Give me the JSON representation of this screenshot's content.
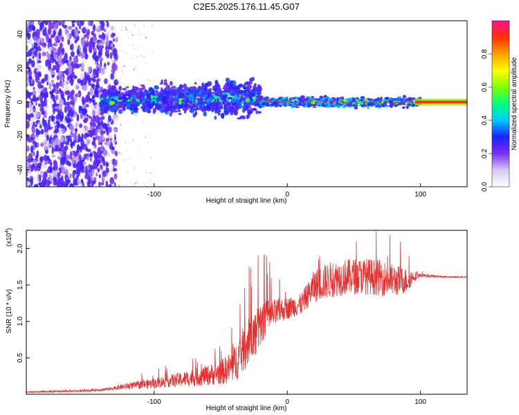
{
  "title": "C2E5.2025.176.11.45.G07",
  "colors": {
    "snr_line": "#e83030",
    "axis": "#000000"
  },
  "chart_data": [
    {
      "type": "heatmap",
      "xlabel": "Height of straight line (km)",
      "ylabel": "Frequency (Hz)",
      "xlim": [
        -196,
        135
      ],
      "ylim": [
        -50,
        48
      ],
      "x_ticks": [
        -100,
        0,
        100
      ],
      "y_ticks": [
        -40,
        -20,
        0,
        20,
        40
      ],
      "colorbar": {
        "label": "Normalized spectral amplitude",
        "ticks": [
          0.0,
          0.2,
          0.4,
          0.6,
          0.8
        ],
        "range": [
          0,
          1
        ],
        "colormap": [
          "#ffffff",
          "#d8c8f0",
          "#7b2ff0",
          "#2020ff",
          "#00c8ff",
          "#00ff80",
          "#80ff00",
          "#ffff00",
          "#ffa000",
          "#ff3000",
          "#ff1090"
        ]
      },
      "features": [
        {
          "region_km": [
            -196,
            -130
          ],
          "frequency_hz": [
            -50,
            48
          ],
          "amplitude": [
            0.05,
            0.25
          ],
          "description_id": "broadband"
        },
        {
          "region_km": [
            -130,
            -20
          ],
          "frequency_hz": [
            -8,
            10
          ],
          "amplitude": [
            0.2,
            0.55
          ],
          "description_id": "band"
        },
        {
          "region_km": [
            -20,
            100
          ],
          "frequency_hz": [
            -2,
            2
          ],
          "amplitude": [
            0.3,
            0.9
          ],
          "description_id": "narrow"
        },
        {
          "region_km": [
            100,
            135
          ],
          "frequency_hz": [
            -1,
            1
          ],
          "amplitude": [
            0.8,
            0.95
          ],
          "description_id": "carrier"
        }
      ]
    },
    {
      "type": "line",
      "xlabel": "Height of straight line (km)",
      "ylabel": "SNR (10 * v/v)",
      "y_multiplier": "(x10",
      "y_multiplier_exp": "4",
      "y_multiplier_close": ")",
      "xlim": [
        -196,
        135
      ],
      "ylim": [
        0,
        22500
      ],
      "x_ticks": [
        -100,
        0,
        100
      ],
      "y_ticks": [
        5000,
        10000,
        15000,
        20000
      ],
      "y_tick_labels": [
        "0.5",
        "1.0",
        "1.5",
        "2.0"
      ],
      "series": [
        {
          "x": [
            -196,
            -170,
            -150,
            -135,
            -125,
            -110,
            -100,
            -90,
            -80,
            -70,
            -60,
            -50,
            -45,
            -40,
            -35,
            -30,
            -25,
            -20,
            -15,
            -10,
            -5,
            0,
            10,
            15,
            20,
            30,
            40,
            50,
            60,
            70,
            80,
            90,
            95,
            100,
            110,
            120,
            135
          ],
          "y": [
            300,
            400,
            500,
            700,
            1000,
            1300,
            1500,
            1800,
            2000,
            2300,
            2600,
            3000,
            3400,
            4000,
            5500,
            7000,
            8000,
            9500,
            10500,
            11000,
            11500,
            11800,
            12300,
            13500,
            14800,
            15600,
            16000,
            16200,
            16200,
            16000,
            15600,
            15600,
            16200,
            16300,
            16200,
            16100,
            16100
          ],
          "noise": [
            200,
            250,
            300,
            400,
            700,
            1100,
            1400,
            1700,
            2000,
            2400,
            2800,
            3500,
            4000,
            5000,
            6000,
            6500,
            6500,
            6000,
            5000,
            4000,
            3500,
            3000,
            3000,
            3500,
            4500,
            5000,
            5000,
            5000,
            5000,
            5000,
            4500,
            3500,
            1500,
            500,
            300,
            200,
            200
          ]
        }
      ]
    }
  ]
}
